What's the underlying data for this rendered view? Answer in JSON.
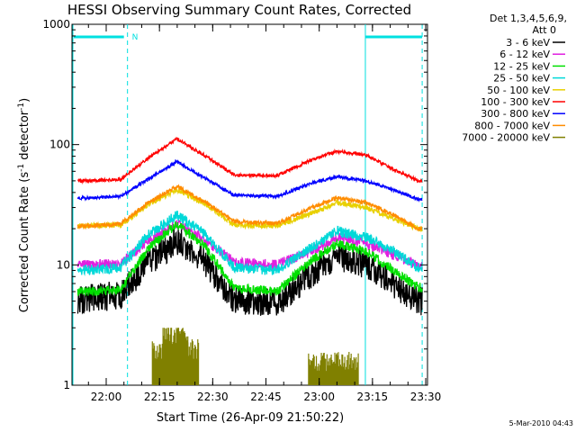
{
  "chart_data": {
    "type": "line",
    "title": "HESSI Observing Summary Count Rates, Corrected",
    "ylabel": "Corrected Count Rate (s⁻¹ detector⁻¹)",
    "ylabel_parts": {
      "main": "Corrected Count Rate (s",
      "sup": "-1",
      "tail": " detector",
      "sup2": "-1",
      "end": ")"
    },
    "xlabel": "Start Time (26-Apr-09 21:50:22)",
    "yscale": "log",
    "ylim": [
      1,
      1000
    ],
    "xlim": [
      "21:50:22",
      "23:30:30"
    ],
    "x_ticks": [
      "22:00",
      "22:15",
      "22:30",
      "22:45",
      "23:00",
      "23:15",
      "23:30"
    ],
    "y_ticks": [
      "1",
      "10",
      "100",
      "1000"
    ],
    "legend_header": [
      "Det 1,3,4,5,6,9,",
      "Att 0"
    ],
    "legend_position": "top-right outside",
    "series": [
      {
        "name": "3 - 6 keV",
        "color": "#000000",
        "points": [
          [
            "21:54",
            5.2
          ],
          [
            "22:04",
            5.6
          ],
          [
            "22:12",
            10.5
          ],
          [
            "22:20",
            16
          ],
          [
            "22:28",
            10.5
          ],
          [
            "22:36",
            5.2
          ],
          [
            "22:48",
            4.8
          ],
          [
            "22:58",
            8.5
          ],
          [
            "23:05",
            12
          ],
          [
            "23:13",
            10
          ],
          [
            "23:21",
            7
          ],
          [
            "23:28",
            5
          ]
        ]
      },
      {
        "name": "6 - 12 keV",
        "color": "#e020e0",
        "points": [
          [
            "21:54",
            10
          ],
          [
            "22:04",
            10.2
          ],
          [
            "22:12",
            16
          ],
          [
            "22:20",
            22
          ],
          [
            "22:28",
            16
          ],
          [
            "22:36",
            10.5
          ],
          [
            "22:48",
            10
          ],
          [
            "22:58",
            13
          ],
          [
            "23:05",
            17
          ],
          [
            "23:13",
            15
          ],
          [
            "23:21",
            12
          ],
          [
            "23:28",
            10
          ]
        ]
      },
      {
        "name": "12 - 25 keV",
        "color": "#00e000",
        "points": [
          [
            "21:54",
            6
          ],
          [
            "22:04",
            6.2
          ],
          [
            "22:12",
            14
          ],
          [
            "22:20",
            22
          ],
          [
            "22:28",
            14
          ],
          [
            "22:36",
            6.5
          ],
          [
            "22:48",
            6
          ],
          [
            "22:58",
            11
          ],
          [
            "23:05",
            15
          ],
          [
            "23:13",
            13
          ],
          [
            "23:21",
            9
          ],
          [
            "23:28",
            6.5
          ]
        ]
      },
      {
        "name": "25 - 50 keV",
        "color": "#00d8d8",
        "points": [
          [
            "21:54",
            9
          ],
          [
            "22:04",
            9.5
          ],
          [
            "22:12",
            18
          ],
          [
            "22:20",
            26
          ],
          [
            "22:28",
            18
          ],
          [
            "22:36",
            9.5
          ],
          [
            "22:48",
            9
          ],
          [
            "22:58",
            14
          ],
          [
            "23:05",
            19
          ],
          [
            "23:13",
            17
          ],
          [
            "23:21",
            13
          ],
          [
            "23:28",
            9.5
          ]
        ]
      },
      {
        "name": "50 - 100 keV",
        "color": "#e8d000",
        "points": [
          [
            "21:54",
            21
          ],
          [
            "22:04",
            21.5
          ],
          [
            "22:12",
            32
          ],
          [
            "22:20",
            42
          ],
          [
            "22:28",
            32
          ],
          [
            "22:36",
            21.5
          ],
          [
            "22:48",
            21
          ],
          [
            "22:58",
            27
          ],
          [
            "23:05",
            33
          ],
          [
            "23:13",
            30
          ],
          [
            "23:21",
            24
          ],
          [
            "23:28",
            20
          ]
        ]
      },
      {
        "name": "100 - 300 keV",
        "color": "#ff0000",
        "points": [
          [
            "21:54",
            50
          ],
          [
            "22:04",
            51
          ],
          [
            "22:12",
            78
          ],
          [
            "22:20",
            112
          ],
          [
            "22:28",
            80
          ],
          [
            "22:36",
            56
          ],
          [
            "22:48",
            55
          ],
          [
            "22:58",
            75
          ],
          [
            "23:05",
            88
          ],
          [
            "23:13",
            82
          ],
          [
            "23:21",
            62
          ],
          [
            "23:28",
            50
          ]
        ]
      },
      {
        "name": "300 - 800 keV",
        "color": "#0000ff",
        "points": [
          [
            "21:54",
            36
          ],
          [
            "22:04",
            37
          ],
          [
            "22:12",
            52
          ],
          [
            "22:20",
            72
          ],
          [
            "22:28",
            52
          ],
          [
            "22:36",
            38
          ],
          [
            "22:48",
            37
          ],
          [
            "22:58",
            48
          ],
          [
            "23:05",
            54
          ],
          [
            "23:13",
            50
          ],
          [
            "23:21",
            42
          ],
          [
            "23:28",
            35
          ]
        ]
      },
      {
        "name": "800 - 7000 keV",
        "color": "#ff8c00",
        "points": [
          [
            "21:54",
            21
          ],
          [
            "22:04",
            22
          ],
          [
            "22:12",
            33
          ],
          [
            "22:20",
            45
          ],
          [
            "22:28",
            33
          ],
          [
            "22:36",
            23
          ],
          [
            "22:48",
            22
          ],
          [
            "22:58",
            30
          ],
          [
            "23:05",
            36
          ],
          [
            "23:13",
            33
          ],
          [
            "23:21",
            26
          ],
          [
            "23:28",
            20
          ]
        ]
      },
      {
        "name": "7000 - 20000 keV",
        "color": "#808000",
        "points": [
          [
            "22:14",
            1.8
          ],
          [
            "22:16",
            2.8
          ],
          [
            "22:20",
            2.8
          ],
          [
            "22:24",
            1.9
          ],
          [
            "22:26",
            1.6
          ],
          [
            "22:27",
            1.9
          ],
          [
            "22:58",
            1.7
          ],
          [
            "23:12",
            1.7
          ]
        ]
      }
    ],
    "annotations": {
      "top_bars": {
        "color": "#00e0e0",
        "label": "N",
        "spans": [
          [
            "21:50",
            [
              "22:06"
            ]
          ],
          [
            "23:13",
            "23:30"
          ]
        ]
      },
      "dashed_lines": {
        "color": "#00e0e0",
        "x": [
          "22:06",
          "23:29"
        ]
      },
      "solid_lines": {
        "color": "#00e0e0",
        "x": [
          "21:50",
          "23:13"
        ]
      }
    },
    "footer": "5-Mar-2010 04:43"
  }
}
